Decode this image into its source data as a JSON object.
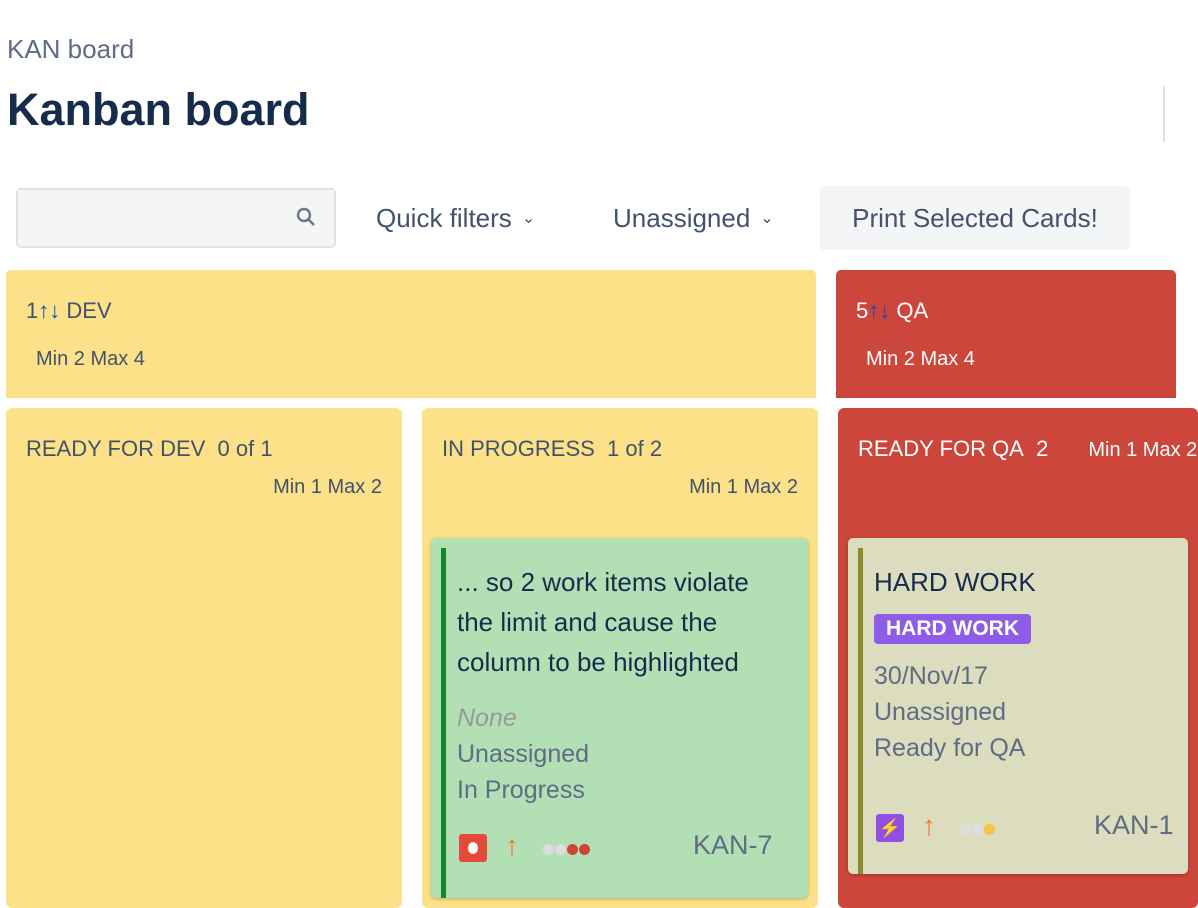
{
  "breadcrumb": "KAN board",
  "title": "Kanban board",
  "toolbar": {
    "search_placeholder": "",
    "quick_filters": "Quick filters",
    "assignee": "Unassigned",
    "print": "Print Selected Cards!"
  },
  "groups": [
    {
      "count": "1",
      "arrows": "↑↓",
      "name": "DEV",
      "limits": "Min 2  Max 4",
      "color": "#fce188"
    },
    {
      "count": "5",
      "arrows": "↑↓",
      "name": "QA",
      "limits": "Min 2  Max 4",
      "color": "#cd463c"
    }
  ],
  "columns": [
    {
      "name": "READY FOR DEV",
      "count": "0 of 1",
      "limits": "Min 1  Max 2"
    },
    {
      "name": "IN PROGRESS",
      "count": "1 of 2",
      "limits": "Min 1  Max 2"
    },
    {
      "name": "READY FOR QA",
      "count": "2",
      "limits": "Min 1  Max 2"
    }
  ],
  "cards": [
    {
      "summary": "... so 2 work items violate the limit and cause the column to be highlighted",
      "label": "",
      "due": "None",
      "assignee": "Unassigned",
      "status": "In Progress",
      "type_icon": "bug-icon",
      "priority_icon": "priority-high-icon",
      "key": "KAN-7"
    },
    {
      "summary": "HARD WORK",
      "label": "HARD WORK",
      "due": "30/Nov/17",
      "assignee": "Unassigned",
      "status": "Ready for QA",
      "type_icon": "epic-icon",
      "priority_icon": "priority-high-icon",
      "key": "KAN-1"
    }
  ]
}
